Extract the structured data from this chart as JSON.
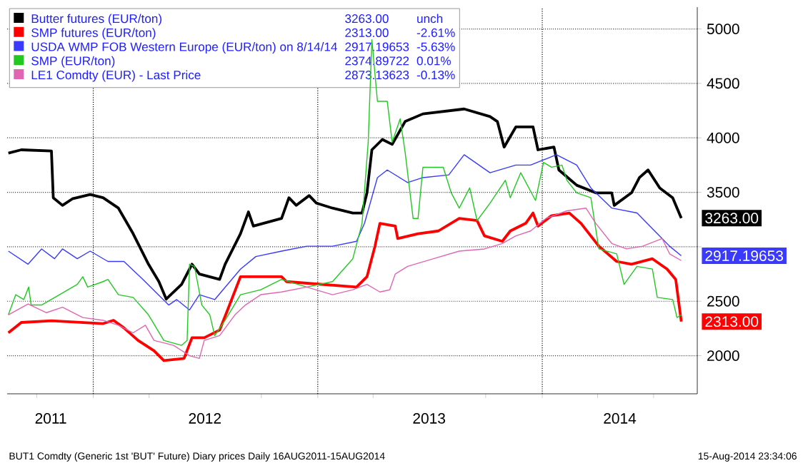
{
  "chart_data": {
    "type": "line",
    "xlim": [
      "2011-08-14",
      "2014-09-10"
    ],
    "ylim": [
      1650,
      5200
    ],
    "yticks": [
      2000,
      2500,
      {
        "value": 3000,
        "label": null
      },
      3500,
      4000,
      4500,
      5000
    ],
    "xticks": [
      {
        "value": "2011-10-01",
        "label": null
      },
      {
        "value": "2012-01-01",
        "label": null
      },
      {
        "value": "2012-04-01",
        "label": null
      },
      {
        "value": "2012-10-01",
        "label": null
      },
      {
        "value": "2013-01-01",
        "label": null
      },
      {
        "value": "2013-04-01",
        "label": null
      },
      {
        "value": "2013-10-01",
        "label": null
      },
      {
        "value": "2014-01-01",
        "label": null
      },
      {
        "value": "2014-04-01",
        "label": null
      },
      {
        "value": "2014-07-01",
        "label": null
      },
      {
        "value": "2011-10-24",
        "label": "2011"
      },
      {
        "value": "2012-07-01",
        "label": "2012"
      },
      {
        "value": "2013-07-01",
        "label": "2013"
      },
      {
        "value": "2014-05-07",
        "label": "2014"
      }
    ],
    "grid": "y",
    "legend": "top left",
    "marker": "none",
    "line_style": "solid",
    "ref_lines": [
      {
        "axis": "x",
        "value": "2012-01-01",
        "line_style": "dotted"
      },
      {
        "axis": "x",
        "value": "2013-01-01",
        "line_style": "dotted"
      },
      {
        "axis": "x",
        "value": "2014-01-01",
        "line_style": "dotted"
      }
    ],
    "annotations": [
      "3263.00",
      "unch",
      "2313.00",
      "-2.61%",
      "2917.19653",
      "-5.63%",
      "2374.89722",
      "0.01%",
      "2873.13623",
      "-0.13%",
      "BUT1 Comdty (Generic 1st 'BUT' Future) Diary prices  Daily 16AUG2011-15AUG2014",
      "15-Aug-2014 23:34:06"
    ],
    "series": [
      {
        "name": "Butter futures (EUR/ton)",
        "color": "#000000",
        "x": [
          "2011-08-16",
          "2011-09-06",
          "2011-10-25",
          "2011-10-28",
          "2011-11-12",
          "2011-11-28",
          "2011-12-27",
          "2012-01-17",
          "2012-02-11",
          "2012-03-06",
          "2012-03-31",
          "2012-04-17",
          "2012-04-29",
          "2012-05-24",
          "2012-06-10",
          "2012-06-22",
          "2012-07-25",
          "2012-08-03",
          "2012-08-28",
          "2012-09-10",
          "2012-09-18",
          "2012-11-03",
          "2012-11-15",
          "2012-11-27",
          "2012-12-18",
          "2012-12-30",
          "2013-01-25",
          "2013-02-27",
          "2013-03-14",
          "2013-03-22",
          "2013-03-30",
          "2013-04-16",
          "2013-05-02",
          "2013-05-23",
          "2013-06-21",
          "2013-08-27",
          "2013-10-08",
          "2013-10-20",
          "2013-10-31",
          "2013-11-19",
          "2013-12-17",
          "2013-12-25",
          "2014-01-20",
          "2014-01-28",
          "2014-02-26",
          "2014-03-29",
          "2014-04-24",
          "2014-04-28",
          "2014-05-26",
          "2014-06-08",
          "2014-06-22",
          "2014-07-11",
          "2014-08-01",
          "2014-08-15"
        ],
        "values": [
          3860,
          3890,
          3880,
          3450,
          3380,
          3440,
          3480,
          3450,
          3355,
          3120,
          2840,
          2680,
          2520,
          2655,
          2840,
          2750,
          2700,
          2840,
          3120,
          3320,
          3190,
          3260,
          3450,
          3380,
          3470,
          3400,
          3355,
          3310,
          3310,
          3495,
          3890,
          3985,
          3940,
          4150,
          4220,
          4265,
          4195,
          4150,
          3915,
          4100,
          4100,
          3890,
          3915,
          3705,
          3565,
          3495,
          3495,
          3380,
          3495,
          3635,
          3705,
          3540,
          3450,
          3263
        ],
        "value_labels": [
          null,
          null,
          null,
          null,
          null,
          null,
          null,
          null,
          null,
          null,
          null,
          null,
          null,
          null,
          null,
          null,
          null,
          null,
          null,
          null,
          null,
          null,
          null,
          null,
          null,
          null,
          null,
          null,
          null,
          null,
          null,
          null,
          null,
          null,
          null,
          null,
          null,
          null,
          null,
          null,
          null,
          null,
          null,
          null,
          null,
          null,
          null,
          null,
          null,
          null,
          null,
          null,
          null,
          "3263.00"
        ]
      },
      {
        "name": "SMP futures (EUR/ton)",
        "color": "#ff0000",
        "x": [
          "2011-08-16",
          "2011-09-06",
          "2011-10-25",
          "2012-01-17",
          "2012-02-03",
          "2012-02-20",
          "2012-03-14",
          "2012-04-09",
          "2012-04-25",
          "2012-05-28",
          "2012-06-10",
          "2012-06-30",
          "2012-07-25",
          "2012-08-07",
          "2012-08-28",
          "2012-11-03",
          "2012-11-11",
          "2013-03-05",
          "2013-03-22",
          "2013-04-04",
          "2013-04-12",
          "2013-05-07",
          "2013-05-11",
          "2013-06-13",
          "2013-07-16",
          "2013-08-19",
          "2013-09-17",
          "2013-09-29",
          "2013-10-28",
          "2013-11-10",
          "2013-12-05",
          "2013-12-17",
          "2013-12-25",
          "2014-01-16",
          "2014-02-14",
          "2014-03-05",
          "2014-04-03",
          "2014-05-02",
          "2014-05-26",
          "2014-06-29",
          "2014-07-23",
          "2014-08-06",
          "2014-08-15"
        ],
        "values": [
          2210,
          2305,
          2320,
          2295,
          2325,
          2255,
          2140,
          2045,
          1955,
          1975,
          2165,
          2165,
          2235,
          2420,
          2725,
          2725,
          2680,
          2630,
          2725,
          3005,
          3215,
          3190,
          3075,
          3120,
          3145,
          3260,
          3240,
          3100,
          3050,
          3145,
          3215,
          3310,
          3190,
          3285,
          3310,
          3215,
          3005,
          2865,
          2840,
          2890,
          2795,
          2700,
          2313
        ],
        "value_labels": [
          null,
          null,
          null,
          null,
          null,
          null,
          null,
          null,
          null,
          null,
          null,
          null,
          null,
          null,
          null,
          null,
          null,
          null,
          null,
          null,
          null,
          null,
          null,
          null,
          null,
          null,
          null,
          null,
          null,
          null,
          null,
          null,
          null,
          null,
          null,
          null,
          null,
          null,
          null,
          null,
          null,
          null,
          "2313.00"
        ]
      },
      {
        "name": "USDA WMP FOB Western Europe (EUR/ton) on 8/14/14",
        "color": "#3a3aff",
        "x": [
          "2011-08-16",
          "2011-09-17",
          "2011-10-09",
          "2011-10-30",
          "2011-11-12",
          "2011-12-06",
          "2011-12-27",
          "2012-01-25",
          "2012-02-20",
          "2012-03-22",
          "2012-05-03",
          "2012-05-16",
          "2012-06-06",
          "2012-06-22",
          "2012-07-17",
          "2012-08-28",
          "2012-09-22",
          "2012-11-03",
          "2012-12-14",
          "2013-01-25",
          "2013-03-05",
          "2013-03-18",
          "2013-04-08",
          "2013-04-24",
          "2013-05-27",
          "2013-06-21",
          "2013-08-02",
          "2013-08-27",
          "2013-10-08",
          "2013-11-19",
          "2013-12-13",
          "2014-01-24",
          "2014-02-26",
          "2014-03-21",
          "2014-04-24",
          "2014-06-04",
          "2014-07-07",
          "2014-07-27",
          "2014-08-15"
        ],
        "values": [
          2960,
          2840,
          2980,
          2890,
          2980,
          2890,
          2960,
          2865,
          2865,
          2700,
          2465,
          2515,
          2420,
          2560,
          2515,
          2795,
          2910,
          2960,
          3005,
          3005,
          3050,
          3215,
          3635,
          3705,
          3590,
          3635,
          3660,
          3845,
          3680,
          3750,
          3750,
          3845,
          3750,
          3540,
          3355,
          3310,
          3120,
          3005,
          2917.19653
        ],
        "value_labels": [
          null,
          null,
          null,
          null,
          null,
          null,
          null,
          null,
          null,
          null,
          null,
          null,
          null,
          null,
          null,
          null,
          null,
          null,
          null,
          null,
          null,
          null,
          null,
          null,
          null,
          null,
          null,
          null,
          null,
          null,
          null,
          null,
          null,
          null,
          null,
          null,
          null,
          null,
          "2917.19653"
        ]
      },
      {
        "name": "SMP (EUR/ton)",
        "color": "#22c822",
        "x": [
          "2011-08-16",
          "2011-08-28",
          "2011-09-10",
          "2011-09-18",
          "2011-09-22",
          "2011-10-09",
          "2011-12-06",
          "2011-12-15",
          "2011-12-23",
          "2012-01-17",
          "2012-01-25",
          "2012-02-11",
          "2012-03-06",
          "2012-03-31",
          "2012-04-25",
          "2012-05-24",
          "2012-06-02",
          "2012-06-06",
          "2012-06-14",
          "2012-06-26",
          "2012-07-09",
          "2012-07-17",
          "2012-08-03",
          "2012-08-28",
          "2012-09-30",
          "2012-11-03",
          "2012-12-14",
          "2013-01-25",
          "2013-02-27",
          "2013-03-14",
          "2013-03-24",
          "2013-03-30",
          "2013-04-08",
          "2013-04-24",
          "2013-05-02",
          "2013-05-15",
          "2013-05-23",
          "2013-06-05",
          "2013-06-13",
          "2013-06-21",
          "2013-07-24",
          "2013-08-06",
          "2013-08-19",
          "2013-09-05",
          "2013-09-17",
          "2013-10-08",
          "2013-11-02",
          "2013-11-10",
          "2013-11-27",
          "2013-12-21",
          "2014-01-03",
          "2014-01-16",
          "2014-02-02",
          "2014-02-10",
          "2014-02-26",
          "2014-03-21",
          "2014-04-03",
          "2014-05-02",
          "2014-05-14",
          "2014-06-04",
          "2014-06-29",
          "2014-07-07",
          "2014-08-01",
          "2014-08-08",
          "2014-08-15"
        ],
        "values": [
          2375,
          2560,
          2515,
          2630,
          2465,
          2465,
          2655,
          2725,
          2630,
          2680,
          2700,
          2560,
          2535,
          2375,
          2140,
          2095,
          2140,
          2840,
          2820,
          2465,
          2375,
          2185,
          2325,
          2560,
          2605,
          2700,
          2630,
          2680,
          2890,
          3215,
          3960,
          4900,
          4335,
          4335,
          3960,
          4175,
          3870,
          3260,
          3260,
          3730,
          3730,
          3495,
          3355,
          3540,
          3240,
          3400,
          3610,
          3450,
          3680,
          3425,
          3775,
          3730,
          3750,
          3610,
          3495,
          3450,
          2980,
          2935,
          2655,
          2820,
          2795,
          2535,
          2515,
          2350,
          2374.89722
        ]
      },
      {
        "name": "LE1 Comdty (EUR) - Last Price",
        "color": "#e066b3",
        "x": [
          "2011-08-16",
          "2011-09-17",
          "2011-10-17",
          "2011-11-12",
          "2011-12-15",
          "2012-01-17",
          "2012-02-11",
          "2012-03-06",
          "2012-03-26",
          "2012-04-09",
          "2012-05-11",
          "2012-06-06",
          "2012-06-22",
          "2012-06-30",
          "2012-07-25",
          "2012-08-19",
          "2012-09-05",
          "2012-09-30",
          "2012-11-03",
          "2012-12-14",
          "2013-01-25",
          "2013-02-27",
          "2013-03-22",
          "2013-04-12",
          "2013-04-28",
          "2013-05-07",
          "2013-05-27",
          "2013-07-08",
          "2013-08-19",
          "2013-09-29",
          "2013-10-28",
          "2013-11-19",
          "2013-12-13",
          "2014-01-07",
          "2014-02-10",
          "2014-03-13",
          "2014-03-29",
          "2014-04-24",
          "2014-05-18",
          "2014-06-13",
          "2014-07-15",
          "2014-07-27",
          "2014-08-15"
        ],
        "values": [
          2375,
          2475,
          2395,
          2445,
          2350,
          2325,
          2280,
          2210,
          2280,
          2140,
          2095,
          2000,
          1975,
          2140,
          2185,
          2375,
          2465,
          2560,
          2585,
          2630,
          2560,
          2605,
          2655,
          2585,
          2605,
          2750,
          2820,
          2890,
          2960,
          2980,
          3030,
          3100,
          3145,
          3260,
          3330,
          3355,
          3215,
          3030,
          2980,
          3005,
          3075,
          2935,
          2873.13623
        ]
      }
    ]
  }
}
